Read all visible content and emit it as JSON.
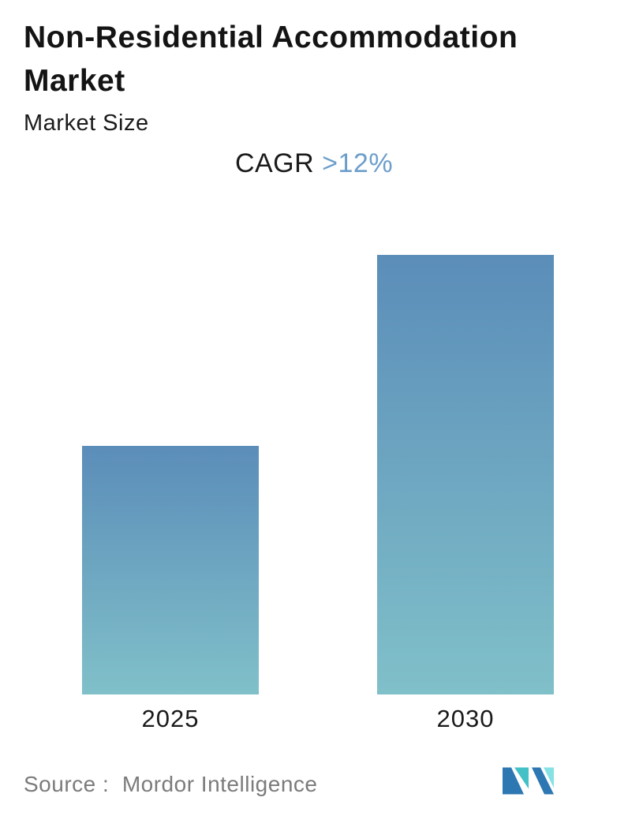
{
  "header": {
    "title": "Non-Residential Accommodation Market",
    "subtitle": "Market Size"
  },
  "cagr": {
    "label": "CAGR",
    "value": ">12%",
    "accent_color": "#6d9ecb"
  },
  "chart_data": {
    "type": "bar",
    "title": "Non-Residential Accommodation Market",
    "subtitle": "Market Size",
    "annotation": "CAGR >12%",
    "categories": [
      "2025",
      "2030"
    ],
    "values": [
      1.0,
      1.77
    ],
    "value_note": "no numeric axis shown; values are relative bar heights (2025 indexed to 1.0, 2030 ≈ 1.77 implying >12% CAGR)",
    "xlabel": "",
    "ylabel": "",
    "axes_visible": false,
    "grid": false,
    "legend": "none",
    "bar_gradient_top": "#5b8db9",
    "bar_gradient_bottom": "#80c0c9"
  },
  "footer": {
    "source_text": "Source :  Mordor Intelligence",
    "logo_name": "mordor-intelligence-logo",
    "logo_colors": {
      "blue": "#2d77b3",
      "teal": "#43c1c6",
      "teal_light": "#86e1e5"
    }
  }
}
